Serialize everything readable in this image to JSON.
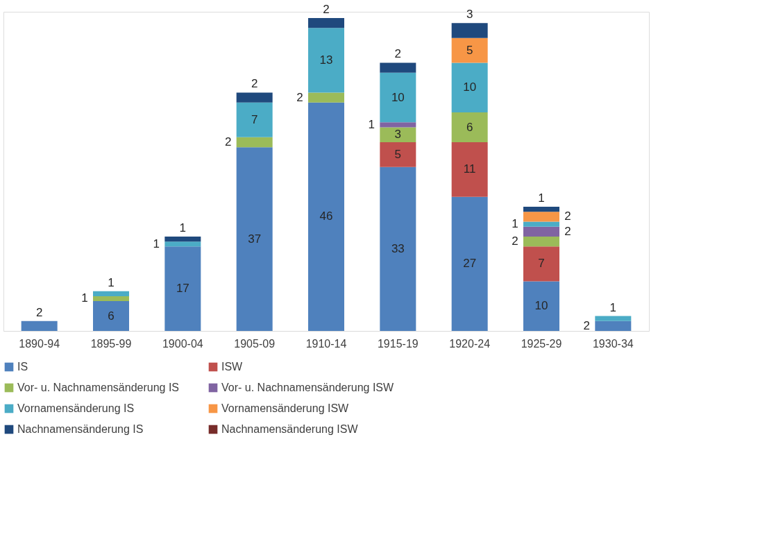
{
  "chart_data": {
    "type": "bar",
    "stacked": true,
    "data_labels": true,
    "legend": "bottom",
    "categories": [
      "1890-94",
      "1895-99",
      "1900-04",
      "1905-09",
      "1910-14",
      "1915-19",
      "1920-24",
      "1925-29",
      "1930-34"
    ],
    "series": [
      {
        "name": "IS",
        "color": "#4f81bd",
        "values": [
          2,
          6,
          17,
          37,
          46,
          33,
          27,
          10,
          2
        ]
      },
      {
        "name": "ISW",
        "color": "#c0504d",
        "values": [
          null,
          null,
          null,
          null,
          null,
          5,
          11,
          7,
          null
        ]
      },
      {
        "name": "Vor- u. Nachnamensänderung IS",
        "color": "#9bbb59",
        "values": [
          null,
          1,
          null,
          2,
          2,
          3,
          6,
          2,
          null
        ]
      },
      {
        "name": "Vor- u. Nachnamensänderung ISW",
        "color": "#8064a2",
        "values": [
          null,
          null,
          null,
          null,
          null,
          1,
          null,
          2,
          null
        ]
      },
      {
        "name": "Vornamensänderung IS",
        "color": "#4bacc6",
        "values": [
          null,
          1,
          1,
          7,
          13,
          10,
          10,
          1,
          1
        ]
      },
      {
        "name": "Vornamensänderung ISW",
        "color": "#f79646",
        "values": [
          null,
          null,
          null,
          null,
          null,
          null,
          5,
          2,
          null
        ]
      },
      {
        "name": "Nachnamensänderung IS",
        "color": "#1f497d",
        "values": [
          null,
          null,
          1,
          2,
          2,
          2,
          3,
          1,
          null
        ]
      },
      {
        "name": "Nachnamensänderung ISW",
        "color": "#772c2a",
        "values": [
          null,
          null,
          null,
          null,
          null,
          null,
          null,
          null,
          null
        ]
      }
    ]
  }
}
